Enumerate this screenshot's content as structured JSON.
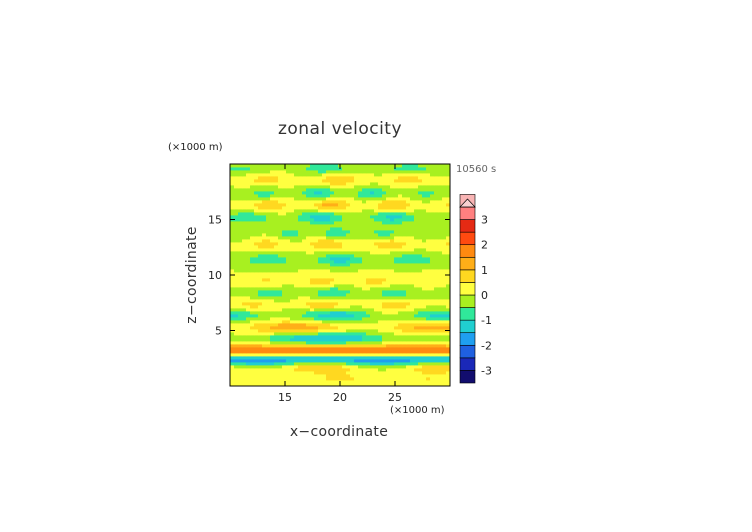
{
  "chart_data": {
    "type": "heatmap",
    "title": "zonal velocity",
    "xlabel": "x−coordinate",
    "ylabel": "z−coordinate",
    "x_unit": "(×1000 m)",
    "y_unit": "(×1000 m)",
    "time_label": "10560 s",
    "xlim": [
      10,
      30
    ],
    "ylim": [
      0,
      20
    ],
    "x_ticks": [
      15,
      20,
      25
    ],
    "y_ticks": [
      5,
      10,
      15
    ],
    "colorbar": {
      "ticks": [
        3,
        2,
        1,
        0,
        -1,
        -2,
        -3
      ],
      "levels": [
        -3.5,
        -3,
        -2.5,
        -2,
        -1.5,
        -1,
        -0.5,
        0,
        0.5,
        1,
        1.5,
        2,
        2.5,
        3,
        3.5
      ],
      "colors": [
        "#120d6e",
        "#1a28b8",
        "#1f60e0",
        "#1f9ff0",
        "#20cfd0",
        "#30e89a",
        "#a8f020",
        "#ffff40",
        "#ffd820",
        "#ffae18",
        "#ff8a10",
        "#ff4a10",
        "#e52a14",
        "#ff8080",
        "#f8b4b4"
      ],
      "extend_top_color": "#f8d0d0"
    },
    "bands": [
      {
        "z": 0.7,
        "amp": 0.6,
        "kx": 0.25,
        "phase": 0.0
      },
      {
        "z": 1.8,
        "amp": 1.4,
        "kx": 0.18,
        "phase": 1.0
      },
      {
        "z": 2.4,
        "amp": -2.0,
        "kx": 0.0,
        "phase": 0.0
      },
      {
        "z": 3.2,
        "amp": 2.2,
        "kx": 0.0,
        "phase": 0.0
      },
      {
        "z": 4.3,
        "amp": -1.6,
        "kx": 0.12,
        "phase": 0.5
      },
      {
        "z": 5.3,
        "amp": 1.4,
        "kx": 0.15,
        "phase": 2.0
      },
      {
        "z": 6.4,
        "amp": -1.4,
        "kx": 0.2,
        "phase": 0.3
      },
      {
        "z": 7.3,
        "amp": 0.9,
        "kx": 0.3,
        "phase": 1.5
      },
      {
        "z": 8.4,
        "amp": -1.0,
        "kx": 0.35,
        "phase": 0.8
      },
      {
        "z": 9.5,
        "amp": 0.8,
        "kx": 0.4,
        "phase": 2.2
      },
      {
        "z": 11.4,
        "amp": -1.2,
        "kx": 0.3,
        "phase": 0.0
      },
      {
        "z": 12.8,
        "amp": 1.0,
        "kx": 0.35,
        "phase": 1.2
      },
      {
        "z": 13.8,
        "amp": -0.9,
        "kx": 0.45,
        "phase": 0.4
      },
      {
        "z": 15.2,
        "amp": -1.3,
        "kx": 0.3,
        "phase": 1.7
      },
      {
        "z": 16.3,
        "amp": 1.2,
        "kx": 0.35,
        "phase": 0.9
      },
      {
        "z": 17.4,
        "amp": -1.1,
        "kx": 0.4,
        "phase": 2.5
      },
      {
        "z": 18.6,
        "amp": 0.9,
        "kx": 0.3,
        "phase": 0.2
      },
      {
        "z": 19.6,
        "amp": -0.8,
        "kx": 0.25,
        "phase": 1.1
      }
    ]
  }
}
